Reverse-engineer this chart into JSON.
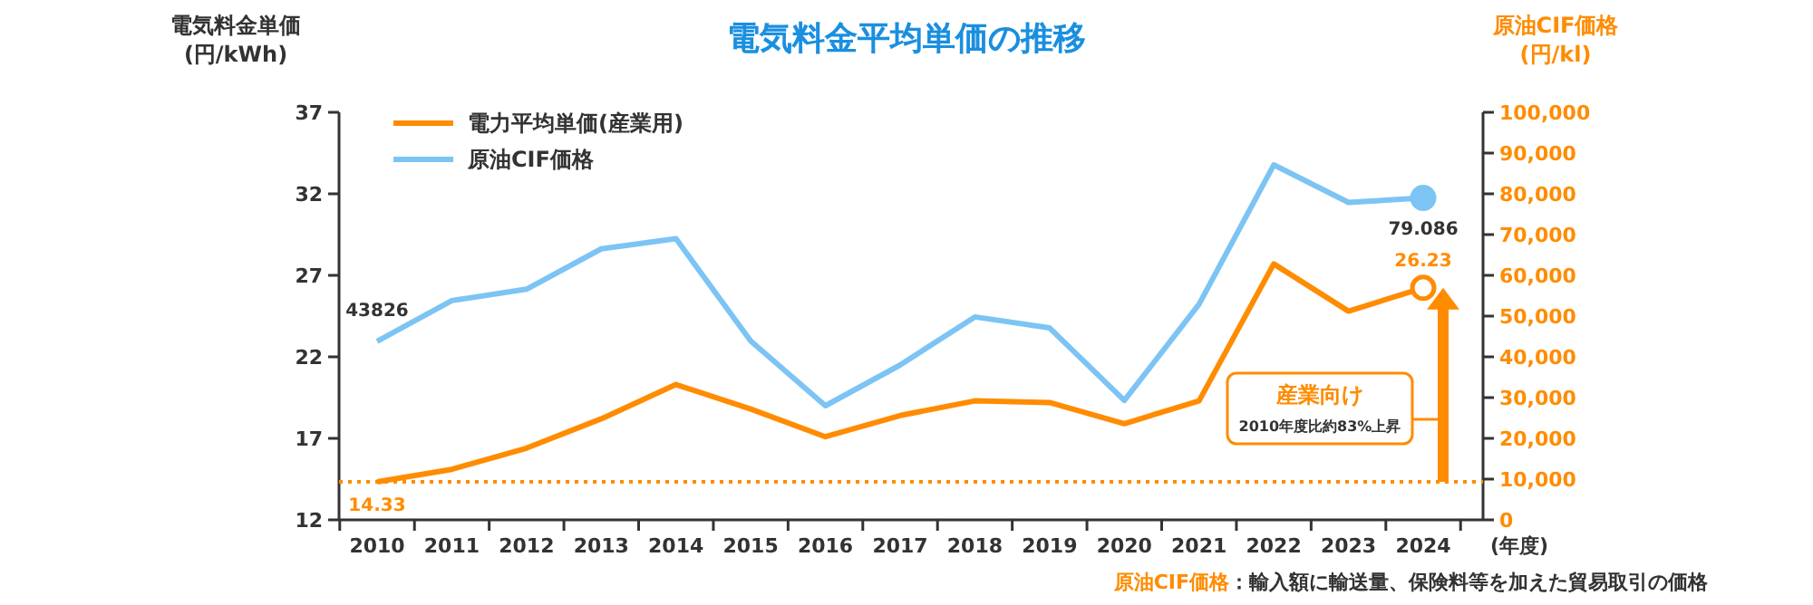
{
  "chart_data": {
    "type": "line",
    "title": "電気料金平均単価の推移",
    "xlabel": "(年度)",
    "ylabel": "電気料金単価\n(円/kWh)",
    "y2label": "原油CIF価格\n(円/kl)",
    "categories": [
      "2010",
      "2011",
      "2012",
      "2013",
      "2014",
      "2015",
      "2016",
      "2017",
      "2018",
      "2019",
      "2020",
      "2021",
      "2022",
      "2023",
      "2024"
    ],
    "series": [
      {
        "name": "電力平均単価(産業用)",
        "color": "#ff8c00",
        "axis": "y",
        "values": [
          14.33,
          15.1,
          16.4,
          18.2,
          20.3,
          18.8,
          17.1,
          18.4,
          19.3,
          19.2,
          17.9,
          19.3,
          27.7,
          24.8,
          26.23
        ],
        "value_labels": [
          "14.33",
          null,
          null,
          null,
          null,
          null,
          null,
          null,
          null,
          null,
          null,
          null,
          null,
          null,
          "26.23"
        ]
      },
      {
        "name": "原油CIF価格",
        "color": "#7cc4f4",
        "axis": "y2",
        "values": [
          43826,
          53800,
          56600,
          66500,
          69000,
          43900,
          28000,
          38000,
          49800,
          47100,
          29300,
          52900,
          87100,
          77900,
          79000
        ],
        "value_labels": [
          "43826",
          null,
          null,
          null,
          null,
          null,
          null,
          null,
          null,
          null,
          null,
          null,
          null,
          null,
          null
        ]
      }
    ],
    "ylim": [
      12,
      37
    ],
    "yticks": [
      12,
      17,
      22,
      27,
      32,
      37
    ],
    "y2lim": [
      0,
      100000
    ],
    "y2ticks": [
      0,
      {
        "value": 10000,
        "label": "10,000"
      },
      {
        "value": 20000,
        "label": "20,000"
      },
      {
        "value": 30000,
        "label": "30,000"
      },
      {
        "value": 40000,
        "label": "40,000"
      },
      {
        "value": 50000,
        "label": "50,000"
      },
      {
        "value": 60000,
        "label": "60,000"
      },
      {
        "value": 70000,
        "label": "70,000"
      },
      {
        "value": 80000,
        "label": "80,000"
      },
      {
        "value": 90000,
        "label": "90,000"
      },
      {
        "value": 100000,
        "label": "100,000"
      }
    ],
    "ref_lines": [
      {
        "axis": "y",
        "value": 14.33,
        "color": "#ff8c00",
        "line_style": "dotted"
      }
    ],
    "annotations": [
      "79.086",
      "産業向け",
      "2010年度比約83%上昇",
      "原油CIF価格：輸入額に輸送量、保険料等を加えた貿易取引の価格"
    ],
    "legend": "top left",
    "grid": false
  }
}
